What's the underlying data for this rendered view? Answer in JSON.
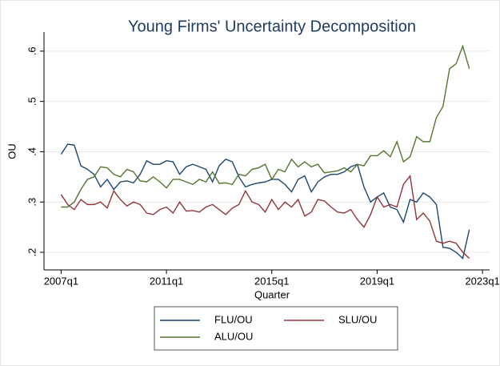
{
  "chart_data": {
    "type": "line",
    "title": "Young Firms' Uncertainty Decomposition",
    "x_label": "Quarter",
    "y_label": "OU",
    "x": [
      2007,
      2007.25,
      2007.5,
      2007.75,
      2008,
      2008.25,
      2008.5,
      2008.75,
      2009,
      2009.25,
      2009.5,
      2009.75,
      2010,
      2010.25,
      2010.5,
      2010.75,
      2011,
      2011.25,
      2011.5,
      2011.75,
      2012,
      2012.25,
      2012.5,
      2012.75,
      2013,
      2013.25,
      2013.5,
      2013.75,
      2014,
      2014.25,
      2014.5,
      2014.75,
      2015,
      2015.25,
      2015.5,
      2015.75,
      2016,
      2016.25,
      2016.5,
      2016.75,
      2017,
      2017.25,
      2017.5,
      2017.75,
      2018,
      2018.25,
      2018.5,
      2018.75,
      2019,
      2019.25,
      2019.5,
      2019.75,
      2020,
      2020.25,
      2020.5,
      2020.75,
      2021,
      2021.25,
      2021.5,
      2021.75,
      2022,
      2022.25,
      2022.5
    ],
    "series": [
      {
        "name": "FLU/OU",
        "color": "#1a476f",
        "values": [
          0.395,
          0.415,
          0.413,
          0.372,
          0.365,
          0.355,
          0.33,
          0.345,
          0.325,
          0.34,
          0.342,
          0.338,
          0.355,
          0.382,
          0.375,
          0.375,
          0.382,
          0.38,
          0.355,
          0.37,
          0.375,
          0.37,
          0.365,
          0.34,
          0.372,
          0.385,
          0.38,
          0.35,
          0.33,
          0.335,
          0.338,
          0.34,
          0.345,
          0.345,
          0.335,
          0.32,
          0.345,
          0.352,
          0.32,
          0.34,
          0.35,
          0.355,
          0.355,
          0.36,
          0.37,
          0.375,
          0.33,
          0.3,
          0.31,
          0.318,
          0.29,
          0.285,
          0.26,
          0.305,
          0.3,
          0.318,
          0.31,
          0.295,
          0.21,
          0.208,
          0.2,
          0.188,
          0.245
        ]
      },
      {
        "name": "SLU/OU",
        "color": "#90353b",
        "values": [
          0.315,
          0.295,
          0.285,
          0.305,
          0.295,
          0.295,
          0.3,
          0.288,
          0.322,
          0.305,
          0.292,
          0.3,
          0.295,
          0.278,
          0.275,
          0.285,
          0.29,
          0.278,
          0.3,
          0.282,
          0.283,
          0.28,
          0.29,
          0.295,
          0.285,
          0.275,
          0.288,
          0.295,
          0.322,
          0.3,
          0.295,
          0.28,
          0.305,
          0.285,
          0.3,
          0.29,
          0.305,
          0.272,
          0.28,
          0.305,
          0.302,
          0.29,
          0.28,
          0.278,
          0.285,
          0.265,
          0.25,
          0.275,
          0.31,
          0.29,
          0.295,
          0.29,
          0.335,
          0.352,
          0.265,
          0.278,
          0.262,
          0.222,
          0.218,
          0.222,
          0.218,
          0.2,
          0.188
        ]
      },
      {
        "name": "ALU/OU",
        "color": "#55752f",
        "values": [
          0.29,
          0.29,
          0.3,
          0.325,
          0.345,
          0.35,
          0.37,
          0.368,
          0.355,
          0.35,
          0.365,
          0.36,
          0.342,
          0.34,
          0.35,
          0.34,
          0.328,
          0.345,
          0.345,
          0.34,
          0.335,
          0.345,
          0.34,
          0.36,
          0.337,
          0.338,
          0.335,
          0.355,
          0.352,
          0.365,
          0.368,
          0.375,
          0.345,
          0.365,
          0.36,
          0.385,
          0.37,
          0.38,
          0.37,
          0.375,
          0.358,
          0.36,
          0.362,
          0.368,
          0.36,
          0.375,
          0.372,
          0.392,
          0.392,
          0.402,
          0.39,
          0.42,
          0.38,
          0.39,
          0.43,
          0.42,
          0.42,
          0.468,
          0.49,
          0.565,
          0.575,
          0.61,
          0.565
        ]
      }
    ],
    "xlim": [
      2006.35,
      2023.27
    ],
    "ylim": [
      0.165,
      0.638
    ],
    "xticks": [
      {
        "value": 2007,
        "label": "2007q1"
      },
      {
        "value": 2011,
        "label": "2011q1"
      },
      {
        "value": 2015,
        "label": "2015q1"
      },
      {
        "value": 2019,
        "label": "2019q1"
      },
      {
        "value": 2023,
        "label": "2023q1"
      }
    ],
    "yticks": [
      {
        "value": 0.2,
        "label": ".2"
      },
      {
        "value": 0.3,
        "label": ".3"
      },
      {
        "value": 0.4,
        "label": ".4"
      },
      {
        "value": 0.5,
        "label": ".5"
      },
      {
        "value": 0.6,
        "label": ".6"
      }
    ],
    "grid": true,
    "legend": "bottom"
  }
}
